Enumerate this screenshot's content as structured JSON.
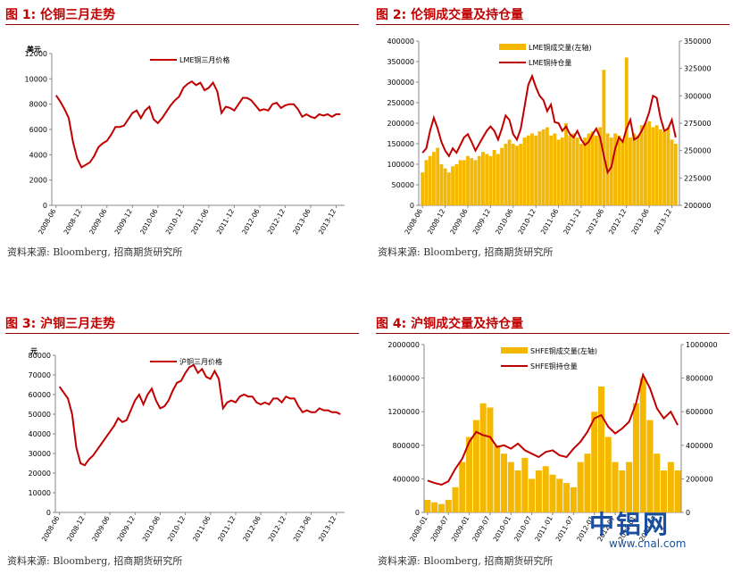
{
  "panels": {
    "fig1": {
      "title": "图 1:  伦铜三月走势",
      "source": "资料来源: Bloomberg, 招商期货研究所"
    },
    "fig2": {
      "title": "图 2:  伦铜成交量及持仓量",
      "source": "资料来源: Bloomberg, 招商期货研究所"
    },
    "fig3": {
      "title": "图 3:  沪铜三月走势",
      "source": "资料来源: Bloomberg, 招商期货研究所"
    },
    "fig4": {
      "title": "图 4:  沪铜成交量及持仓量",
      "source": "资料来源: Bloomberg, 招商期货研究所"
    }
  },
  "watermark": {
    "name": "中铝网",
    "url": "www.cnal.com"
  },
  "colors": {
    "title": "#c00000",
    "line": "#c00000",
    "bar": "#f5b800",
    "rule": "#8b0000"
  },
  "chart_data": [
    {
      "id": "fig1",
      "type": "line",
      "ylabel": "美元",
      "ylim": [
        0,
        12000
      ],
      "yticks": [
        0,
        2000,
        4000,
        6000,
        8000,
        10000,
        12000
      ],
      "xticks": [
        "2008-06",
        "2008-12",
        "2009-06",
        "2009-12",
        "2010-06",
        "2010-12",
        "2011-06",
        "2011-12",
        "2012-06",
        "2012-12",
        "2013-06",
        "2013-12"
      ],
      "grid": false,
      "legend": "top-center",
      "series": [
        {
          "name": "LME铜三月价格",
          "x": [
            "2008-06",
            "2008-07",
            "2008-08",
            "2008-09",
            "2008-10",
            "2008-11",
            "2008-12",
            "2009-01",
            "2009-02",
            "2009-03",
            "2009-04",
            "2009-05",
            "2009-06",
            "2009-07",
            "2009-08",
            "2009-09",
            "2009-10",
            "2009-11",
            "2009-12",
            "2010-01",
            "2010-02",
            "2010-03",
            "2010-04",
            "2010-05",
            "2010-06",
            "2010-07",
            "2010-08",
            "2010-09",
            "2010-10",
            "2010-11",
            "2010-12",
            "2011-01",
            "2011-02",
            "2011-03",
            "2011-04",
            "2011-05",
            "2011-06",
            "2011-07",
            "2011-08",
            "2011-09",
            "2011-10",
            "2011-11",
            "2011-12",
            "2012-01",
            "2012-02",
            "2012-03",
            "2012-04",
            "2012-05",
            "2012-06",
            "2012-07",
            "2012-08",
            "2012-09",
            "2012-10",
            "2012-11",
            "2012-12",
            "2013-01",
            "2013-02",
            "2013-03",
            "2013-04",
            "2013-05",
            "2013-06",
            "2013-07",
            "2013-08",
            "2013-09",
            "2013-10",
            "2013-11",
            "2013-12",
            "2014-01"
          ],
          "values": [
            8700,
            8200,
            7600,
            6900,
            5000,
            3700,
            3000,
            3200,
            3400,
            3900,
            4600,
            4900,
            5100,
            5600,
            6200,
            6200,
            6300,
            6800,
            7300,
            7500,
            6900,
            7500,
            7800,
            6800,
            6500,
            6900,
            7400,
            7900,
            8300,
            8600,
            9300,
            9600,
            9800,
            9500,
            9700,
            9100,
            9300,
            9700,
            9000,
            7300,
            7800,
            7700,
            7500,
            8000,
            8500,
            8500,
            8300,
            7900,
            7500,
            7600,
            7500,
            8000,
            8100,
            7700,
            7900,
            8000,
            8000,
            7600,
            7000,
            7200,
            7000,
            6900,
            7200,
            7100,
            7200,
            7000,
            7200,
            7200
          ]
        }
      ]
    },
    {
      "id": "fig2",
      "type": "bar",
      "ylim": [
        0,
        400000
      ],
      "yticks": [
        0,
        50000,
        100000,
        150000,
        200000,
        250000,
        300000,
        350000,
        400000
      ],
      "y2lim": [
        200000,
        350000
      ],
      "y2ticks": [
        200000,
        225000,
        250000,
        275000,
        300000,
        325000,
        350000
      ],
      "xticks": [
        "2008-06",
        "2008-12",
        "2009-06",
        "2009-12",
        "2010-06",
        "2010-12",
        "2011-06",
        "2011-12",
        "2012-06",
        "2012-12",
        "2013-06",
        "2013-12"
      ],
      "legend": "top-center",
      "series": [
        {
          "name": "LME铜成交量(左轴)",
          "type": "bar",
          "axis": "left",
          "x": [
            "2008-06",
            "2008-07",
            "2008-08",
            "2008-09",
            "2008-10",
            "2008-11",
            "2008-12",
            "2009-01",
            "2009-02",
            "2009-03",
            "2009-04",
            "2009-05",
            "2009-06",
            "2009-07",
            "2009-08",
            "2009-09",
            "2009-10",
            "2009-11",
            "2009-12",
            "2010-01",
            "2010-02",
            "2010-03",
            "2010-04",
            "2010-05",
            "2010-06",
            "2010-07",
            "2010-08",
            "2010-09",
            "2010-10",
            "2010-11",
            "2010-12",
            "2011-01",
            "2011-02",
            "2011-03",
            "2011-04",
            "2011-05",
            "2011-06",
            "2011-07",
            "2011-08",
            "2011-09",
            "2011-10",
            "2011-11",
            "2011-12",
            "2012-01",
            "2012-02",
            "2012-03",
            "2012-04",
            "2012-05",
            "2012-06",
            "2012-07",
            "2012-08",
            "2012-09",
            "2012-10",
            "2012-11",
            "2012-12",
            "2013-01",
            "2013-02",
            "2013-03",
            "2013-04",
            "2013-05",
            "2013-06",
            "2013-07",
            "2013-08",
            "2013-09",
            "2013-10",
            "2013-11",
            "2013-12",
            "2014-01"
          ],
          "values": [
            80000,
            110000,
            120000,
            130000,
            140000,
            100000,
            90000,
            80000,
            95000,
            100000,
            110000,
            110000,
            120000,
            115000,
            110000,
            120000,
            130000,
            125000,
            120000,
            135000,
            125000,
            140000,
            150000,
            160000,
            150000,
            145000,
            150000,
            165000,
            170000,
            175000,
            170000,
            180000,
            185000,
            190000,
            170000,
            175000,
            160000,
            165000,
            200000,
            170000,
            175000,
            165000,
            150000,
            165000,
            175000,
            180000,
            170000,
            190000,
            330000,
            175000,
            165000,
            175000,
            170000,
            160000,
            360000,
            165000,
            175000,
            170000,
            195000,
            200000,
            205000,
            190000,
            195000,
            185000,
            180000,
            190000,
            160000,
            150000
          ]
        },
        {
          "name": "LME铜持仓量",
          "type": "line",
          "axis": "right",
          "x": [
            "2008-06",
            "2008-07",
            "2008-08",
            "2008-09",
            "2008-10",
            "2008-11",
            "2008-12",
            "2009-01",
            "2009-02",
            "2009-03",
            "2009-04",
            "2009-05",
            "2009-06",
            "2009-07",
            "2009-08",
            "2009-09",
            "2009-10",
            "2009-11",
            "2009-12",
            "2010-01",
            "2010-02",
            "2010-03",
            "2010-04",
            "2010-05",
            "2010-06",
            "2010-07",
            "2010-08",
            "2010-09",
            "2010-10",
            "2010-11",
            "2010-12",
            "2011-01",
            "2011-02",
            "2011-03",
            "2011-04",
            "2011-05",
            "2011-06",
            "2011-07",
            "2011-08",
            "2011-09",
            "2011-10",
            "2011-11",
            "2011-12",
            "2012-01",
            "2012-02",
            "2012-03",
            "2012-04",
            "2012-05",
            "2012-06",
            "2012-07",
            "2012-08",
            "2012-09",
            "2012-10",
            "2012-11",
            "2012-12",
            "2013-01",
            "2013-02",
            "2013-03",
            "2013-04",
            "2013-05",
            "2013-06",
            "2013-07",
            "2013-08",
            "2013-09",
            "2013-10",
            "2013-11",
            "2013-12",
            "2014-01"
          ],
          "values": [
            248000,
            252000,
            268000,
            280000,
            270000,
            258000,
            250000,
            245000,
            252000,
            248000,
            255000,
            262000,
            265000,
            258000,
            250000,
            256000,
            262000,
            268000,
            272000,
            268000,
            260000,
            270000,
            282000,
            278000,
            265000,
            260000,
            270000,
            290000,
            310000,
            318000,
            308000,
            300000,
            296000,
            286000,
            292000,
            276000,
            275000,
            268000,
            272000,
            265000,
            262000,
            268000,
            260000,
            255000,
            258000,
            265000,
            270000,
            262000,
            245000,
            230000,
            235000,
            252000,
            262000,
            258000,
            270000,
            278000,
            260000,
            262000,
            268000,
            275000,
            285000,
            300000,
            298000,
            280000,
            268000,
            270000,
            278000,
            262000
          ]
        }
      ]
    },
    {
      "id": "fig3",
      "type": "line",
      "ylabel": "元",
      "ylim": [
        0,
        80000
      ],
      "yticks": [
        0,
        10000,
        20000,
        30000,
        40000,
        50000,
        60000,
        70000,
        80000
      ],
      "xticks": [
        "2008-06",
        "2008-12",
        "2009-06",
        "2009-12",
        "2010-06",
        "2010-12",
        "2011-06",
        "2011-12",
        "2012-06",
        "2012-12",
        "2013-06",
        "2013-12"
      ],
      "grid": false,
      "legend": "top-center",
      "series": [
        {
          "name": "沪铜三月价格",
          "x": [
            "2008-06",
            "2008-07",
            "2008-08",
            "2008-09",
            "2008-10",
            "2008-11",
            "2008-12",
            "2009-01",
            "2009-02",
            "2009-03",
            "2009-04",
            "2009-05",
            "2009-06",
            "2009-07",
            "2009-08",
            "2009-09",
            "2009-10",
            "2009-11",
            "2009-12",
            "2010-01",
            "2010-02",
            "2010-03",
            "2010-04",
            "2010-05",
            "2010-06",
            "2010-07",
            "2010-08",
            "2010-09",
            "2010-10",
            "2010-11",
            "2010-12",
            "2011-01",
            "2011-02",
            "2011-03",
            "2011-04",
            "2011-05",
            "2011-06",
            "2011-07",
            "2011-08",
            "2011-09",
            "2011-10",
            "2011-11",
            "2011-12",
            "2012-01",
            "2012-02",
            "2012-03",
            "2012-04",
            "2012-05",
            "2012-06",
            "2012-07",
            "2012-08",
            "2012-09",
            "2012-10",
            "2012-11",
            "2012-12",
            "2013-01",
            "2013-02",
            "2013-03",
            "2013-04",
            "2013-05",
            "2013-06",
            "2013-07",
            "2013-08",
            "2013-09",
            "2013-10",
            "2013-11",
            "2013-12",
            "2014-01"
          ],
          "values": [
            64000,
            61000,
            58000,
            50000,
            33000,
            25000,
            24000,
            27000,
            29000,
            32000,
            35000,
            38000,
            41000,
            44000,
            48000,
            46000,
            47000,
            52000,
            57000,
            60000,
            55000,
            60000,
            63000,
            57000,
            53000,
            54000,
            57000,
            62000,
            66000,
            67000,
            71000,
            74000,
            75000,
            71000,
            73000,
            69000,
            68000,
            72000,
            68000,
            53000,
            56000,
            57000,
            56000,
            59000,
            60000,
            59000,
            59000,
            56000,
            55000,
            56000,
            55000,
            58000,
            58000,
            56000,
            59000,
            58000,
            58000,
            54000,
            51000,
            52000,
            51000,
            51000,
            53000,
            52000,
            52000,
            51000,
            51000,
            50000
          ]
        }
      ]
    },
    {
      "id": "fig4",
      "type": "bar",
      "ylim": [
        0,
        2000000
      ],
      "yticks": [
        0,
        400000,
        800000,
        1200000,
        1600000,
        2000000
      ],
      "y2lim": [
        0,
        1000000
      ],
      "y2ticks": [
        0,
        200000,
        400000,
        600000,
        800000,
        1000000
      ],
      "xticks": [
        "2008-01",
        "2008-07",
        "2009-01",
        "2009-07",
        "2010-01",
        "2010-07",
        "2011-01",
        "2011-07",
        "2012-01",
        "2012-07",
        "2013-01",
        "2013-07"
      ],
      "legend": "top-center",
      "series": [
        {
          "name": "SHFE铜成交量(左轴)",
          "type": "bar",
          "axis": "left",
          "x": [
            "2008-01",
            "2008-03",
            "2008-05",
            "2008-07",
            "2008-09",
            "2008-11",
            "2009-01",
            "2009-03",
            "2009-05",
            "2009-07",
            "2009-09",
            "2009-11",
            "2010-01",
            "2010-03",
            "2010-05",
            "2010-07",
            "2010-09",
            "2010-11",
            "2011-01",
            "2011-03",
            "2011-05",
            "2011-07",
            "2011-09",
            "2011-11",
            "2012-01",
            "2012-03",
            "2012-05",
            "2012-07",
            "2012-09",
            "2012-11",
            "2013-01",
            "2013-03",
            "2013-05",
            "2013-07",
            "2013-09",
            "2013-11",
            "2014-01"
          ],
          "values": [
            150000,
            120000,
            100000,
            150000,
            300000,
            600000,
            900000,
            1100000,
            1300000,
            1250000,
            800000,
            700000,
            600000,
            500000,
            650000,
            400000,
            500000,
            550000,
            450000,
            400000,
            350000,
            300000,
            600000,
            700000,
            1200000,
            1500000,
            900000,
            600000,
            500000,
            600000,
            1300000,
            1600000,
            1100000,
            700000,
            500000,
            600000,
            500000
          ]
        },
        {
          "name": "SHFE铜持仓量",
          "type": "line",
          "axis": "right",
          "x": [
            "2008-01",
            "2008-03",
            "2008-05",
            "2008-07",
            "2008-09",
            "2008-11",
            "2009-01",
            "2009-03",
            "2009-05",
            "2009-07",
            "2009-09",
            "2009-11",
            "2010-01",
            "2010-03",
            "2010-05",
            "2010-07",
            "2010-09",
            "2010-11",
            "2011-01",
            "2011-03",
            "2011-05",
            "2011-07",
            "2011-09",
            "2011-11",
            "2012-01",
            "2012-03",
            "2012-05",
            "2012-07",
            "2012-09",
            "2012-11",
            "2013-01",
            "2013-03",
            "2013-05",
            "2013-07",
            "2013-09",
            "2013-11",
            "2014-01"
          ],
          "values": [
            190000,
            175000,
            165000,
            185000,
            260000,
            320000,
            420000,
            480000,
            460000,
            450000,
            390000,
            400000,
            380000,
            410000,
            370000,
            350000,
            330000,
            360000,
            370000,
            340000,
            330000,
            380000,
            420000,
            480000,
            560000,
            580000,
            510000,
            470000,
            500000,
            540000,
            650000,
            820000,
            740000,
            620000,
            560000,
            600000,
            520000
          ]
        }
      ]
    }
  ]
}
